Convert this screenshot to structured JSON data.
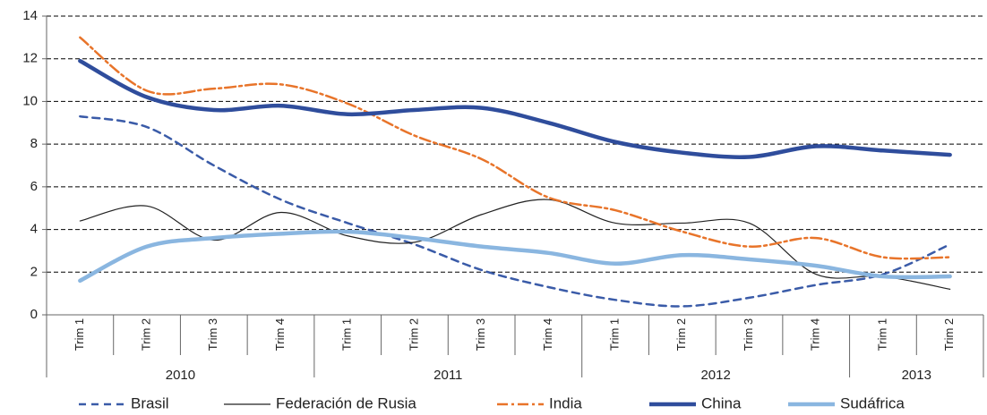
{
  "chart_data": {
    "type": "line",
    "groups": [
      {
        "label": "2010",
        "categories": [
          "Trim 1",
          "Trim 2",
          "Trim 3",
          "Trim 4"
        ]
      },
      {
        "label": "2011",
        "categories": [
          "Trim 1",
          "Trim 2",
          "Trim 3",
          "Trim 4"
        ]
      },
      {
        "label": "2012",
        "categories": [
          "Trim 1",
          "Trim 2",
          "Trim 3",
          "Trim 4"
        ]
      },
      {
        "label": "2013",
        "categories": [
          "Trim 1",
          "Trim 2"
        ]
      }
    ],
    "series": [
      {
        "name": "Brasil",
        "color": "#3a5ba8",
        "style": "dashed",
        "values": [
          9.3,
          8.8,
          7.0,
          5.4,
          4.3,
          3.3,
          2.1,
          1.3,
          0.7,
          0.4,
          0.8,
          1.4,
          1.9,
          3.3
        ]
      },
      {
        "name": "Federación de Rusia",
        "color": "#222222",
        "style": "thin",
        "values": [
          4.4,
          5.1,
          3.5,
          4.8,
          3.7,
          3.4,
          4.7,
          5.4,
          4.3,
          4.3,
          4.3,
          1.9,
          1.8,
          1.2
        ]
      },
      {
        "name": "India",
        "color": "#e8742a",
        "style": "dashdot",
        "values": [
          13.0,
          10.5,
          10.6,
          10.8,
          9.9,
          8.4,
          7.3,
          5.5,
          4.9,
          3.9,
          3.2,
          3.6,
          2.7,
          2.7
        ]
      },
      {
        "name": "China",
        "color": "#2f4d9c",
        "style": "thick",
        "values": [
          11.9,
          10.2,
          9.6,
          9.8,
          9.4,
          9.6,
          9.7,
          9.0,
          8.1,
          7.6,
          7.4,
          7.9,
          7.7,
          7.5
        ]
      },
      {
        "name": "Sudáfrica",
        "color": "#8ab6e0",
        "style": "thick",
        "values": [
          1.6,
          3.2,
          3.6,
          3.8,
          3.9,
          3.6,
          3.2,
          2.9,
          2.4,
          2.8,
          2.6,
          2.3,
          1.8,
          1.8
        ]
      }
    ],
    "ylim": [
      0,
      14
    ],
    "yticks": [
      0,
      2,
      4,
      6,
      8,
      10,
      12,
      14
    ],
    "grid": true,
    "legend": "bottom"
  }
}
